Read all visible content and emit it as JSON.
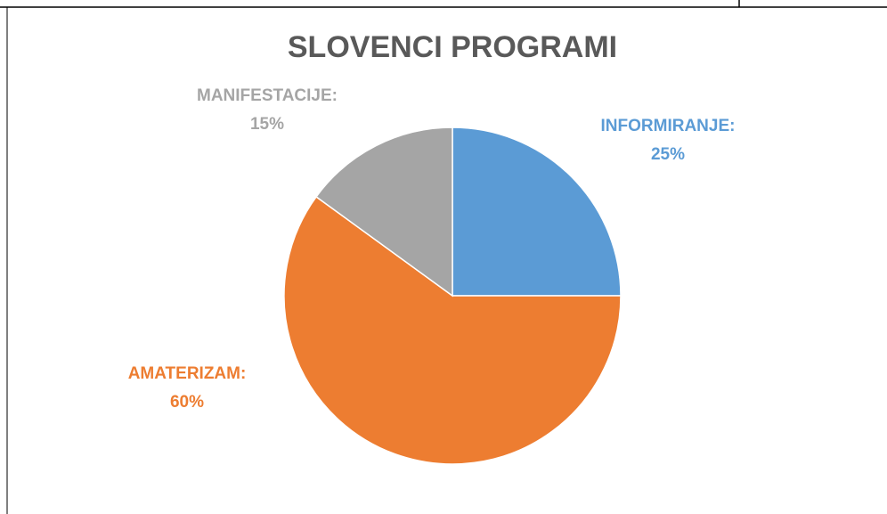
{
  "chart_data": {
    "type": "pie",
    "title": "SLOVENCI PROGRAMI",
    "categories": [
      "INFORMIRANJE:",
      "AMATERIZAM:",
      "MANIFESTACIJE:"
    ],
    "values": [
      25,
      60,
      15
    ],
    "value_labels": [
      "25%",
      "60%",
      "15%"
    ],
    "colors": [
      "#5b9bd5",
      "#ed7d31",
      "#a5a5a5"
    ]
  }
}
